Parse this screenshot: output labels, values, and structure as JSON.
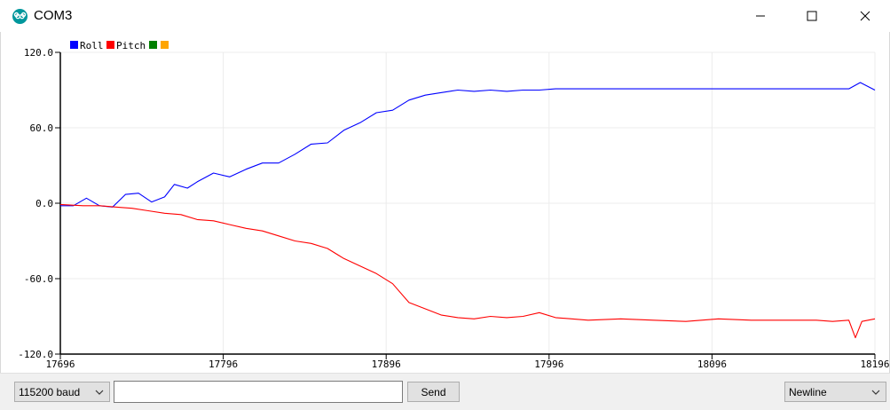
{
  "window": {
    "title": "COM3",
    "app_icon": "arduino-icon",
    "controls": [
      "minimize-icon",
      "maximize-icon",
      "close-icon"
    ]
  },
  "colors": {
    "roll": "#0000ff",
    "pitch": "#ff0000",
    "series3": "#008000",
    "series4": "#ffa500",
    "grid": "#ececec",
    "axis": "#000000",
    "app_accent": "#00979c"
  },
  "chart_data": {
    "type": "line",
    "title": "",
    "xlabel": "",
    "ylabel": "",
    "xlim": [
      17696,
      18196
    ],
    "ylim": [
      -120,
      120
    ],
    "grid": true,
    "legend_placement": "top-left",
    "y_ticks": [
      "120.0",
      "60.0",
      "0.0",
      "-60.0",
      "-120.0"
    ],
    "x_ticks": [
      "17696",
      "17796",
      "17896",
      "17996",
      "18096",
      "18196"
    ],
    "legend": [
      "Roll",
      "Pitch",
      "",
      ""
    ],
    "series": [
      {
        "name": "Roll",
        "x": [
          17696,
          17704,
          17712,
          17720,
          17728,
          17736,
          17744,
          17752,
          17760,
          17766,
          17774,
          17780,
          17790,
          17800,
          17810,
          17820,
          17830,
          17840,
          17850,
          17860,
          17870,
          17880,
          17890,
          17900,
          17910,
          17920,
          17930,
          17940,
          17950,
          17960,
          17970,
          17980,
          17990,
          18000,
          18020,
          18040,
          18060,
          18080,
          18100,
          18120,
          18140,
          18160,
          18180,
          18187,
          18196
        ],
        "values": [
          -2,
          -2,
          4,
          -2,
          -3,
          7,
          8,
          1,
          5,
          15,
          12,
          17,
          24,
          21,
          27,
          32,
          32,
          39,
          47,
          48,
          58,
          64,
          72,
          74,
          82,
          86,
          88,
          90,
          89,
          90,
          89,
          90,
          90,
          91,
          91,
          91,
          91,
          91,
          91,
          91,
          91,
          91,
          91,
          96,
          90
        ]
      },
      {
        "name": "Pitch",
        "x": [
          17696,
          17710,
          17720,
          17730,
          17740,
          17750,
          17760,
          17770,
          17780,
          17790,
          17800,
          17810,
          17820,
          17830,
          17840,
          17850,
          17860,
          17870,
          17880,
          17890,
          17900,
          17910,
          17920,
          17930,
          17940,
          17950,
          17960,
          17970,
          17980,
          17990,
          18000,
          18020,
          18040,
          18060,
          18080,
          18100,
          18120,
          18140,
          18160,
          18170,
          18180,
          18184,
          18188,
          18196
        ],
        "values": [
          -1,
          -2,
          -2,
          -3,
          -4,
          -6,
          -8,
          -9,
          -13,
          -14,
          -17,
          -20,
          -22,
          -26,
          -30,
          -32,
          -36,
          -44,
          -50,
          -56,
          -64,
          -79,
          -84,
          -89,
          -91,
          -92,
          -90,
          -91,
          -90,
          -87,
          -91,
          -93,
          -92,
          -93,
          -94,
          -92,
          -93,
          -93,
          -93,
          -94,
          -93,
          -107,
          -94,
          -92
        ]
      },
      {
        "name": "",
        "x": [],
        "values": []
      },
      {
        "name": "",
        "x": [],
        "values": []
      }
    ]
  },
  "bottom": {
    "baud": "115200 baud",
    "input_value": "",
    "send_label": "Send",
    "line_ending": "Newline"
  }
}
